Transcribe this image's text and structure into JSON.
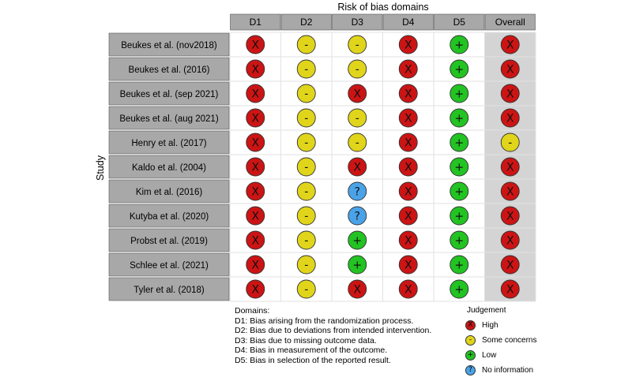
{
  "chart_data": {
    "type": "table",
    "title": "Risk of bias domains",
    "ylabel": "Study",
    "columns": [
      "D1",
      "D2",
      "D3",
      "D4",
      "D5",
      "Overall"
    ],
    "studies": [
      "Beukes et al. (nov2018)",
      "Beukes et al. (2016)",
      "Beukes et al. (sep 2021)",
      "Beukes et al. (aug 2021)",
      "Henry et al. (2017)",
      "Kaldo et al. (2004)",
      "Kim et al. (2016)",
      "Kutyba et al. (2020)",
      "Probst et al. (2019)",
      "Schlee et al. (2021)",
      "Tyler et al. (2018)"
    ],
    "judgements": [
      [
        "high",
        "some",
        "some",
        "high",
        "low",
        "high"
      ],
      [
        "high",
        "some",
        "some",
        "high",
        "low",
        "high"
      ],
      [
        "high",
        "some",
        "high",
        "high",
        "low",
        "high"
      ],
      [
        "high",
        "some",
        "some",
        "high",
        "low",
        "high"
      ],
      [
        "high",
        "some",
        "some",
        "high",
        "low",
        "some"
      ],
      [
        "high",
        "some",
        "high",
        "high",
        "low",
        "high"
      ],
      [
        "high",
        "some",
        "noinfo",
        "high",
        "low",
        "high"
      ],
      [
        "high",
        "some",
        "noinfo",
        "high",
        "low",
        "high"
      ],
      [
        "high",
        "some",
        "low",
        "high",
        "low",
        "high"
      ],
      [
        "high",
        "some",
        "low",
        "high",
        "low",
        "high"
      ],
      [
        "high",
        "some",
        "high",
        "high",
        "low",
        "high"
      ]
    ],
    "judgement_styles": {
      "high": {
        "symbol": "X",
        "color": "#cc1414"
      },
      "some": {
        "symbol": "-",
        "color": "#e0d51a"
      },
      "low": {
        "symbol": "+",
        "color": "#22c322"
      },
      "noinfo": {
        "symbol": "?",
        "color": "#4aa3e8"
      }
    },
    "colors": {
      "label_bg": "#a8a8a8",
      "header_bg": "#a8a8a8",
      "overall_bg": "#d4d4d4",
      "grid_line": "#ffffff"
    }
  },
  "domains": {
    "title": "Domains:",
    "items": [
      "D1: Bias arising from the randomization process.",
      "D2: Bias due to deviations from intended intervention.",
      "D3: Bias due to missing outcome data.",
      "D4: Bias in measurement of the outcome.",
      "D5: Bias in selection of the reported result."
    ]
  },
  "judgement_legend": {
    "title": "Judgement",
    "items": [
      {
        "key": "high",
        "label": "High"
      },
      {
        "key": "some",
        "label": "Some concerns"
      },
      {
        "key": "low",
        "label": "Low"
      },
      {
        "key": "noinfo",
        "label": "No information"
      }
    ]
  }
}
